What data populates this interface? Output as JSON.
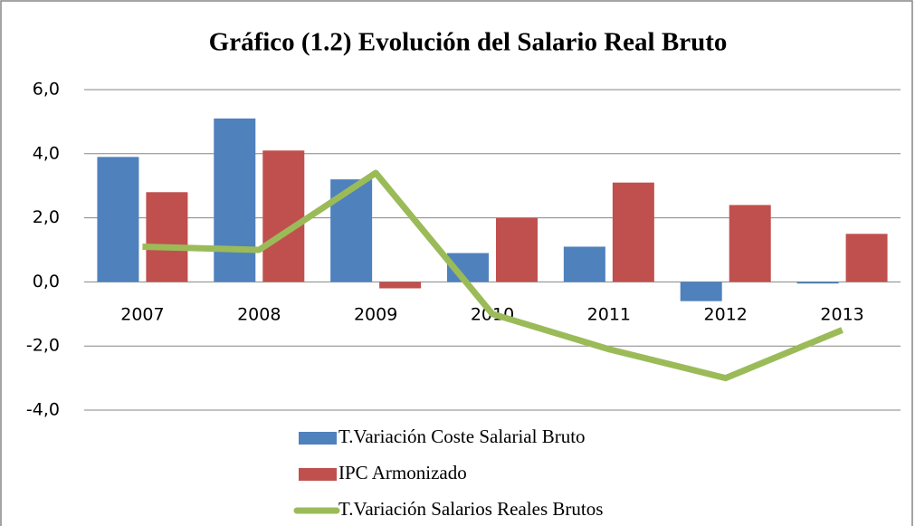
{
  "chart_data": {
    "type": "bar",
    "title": "Gráfico (1.2) Evolución del Salario Real Bruto",
    "categories": [
      "2007",
      "2008",
      "2009",
      "2010",
      "2011",
      "2012",
      "2013"
    ],
    "series": [
      {
        "name": "T.Variación Coste Salarial Bruto",
        "type": "bar",
        "color": "#4f81bd",
        "values": [
          3.9,
          5.1,
          3.2,
          0.9,
          1.1,
          -0.6,
          -0.05
        ]
      },
      {
        "name": "IPC Armonizado",
        "type": "bar",
        "color": "#c0504d",
        "values": [
          2.8,
          4.1,
          -0.2,
          2.0,
          3.1,
          2.4,
          1.5
        ]
      },
      {
        "name": "T.Variación Salarios Reales Brutos",
        "type": "line",
        "color": "#9bbb59",
        "values": [
          1.1,
          1.0,
          3.4,
          -1.0,
          -2.1,
          -3.0,
          -1.5
        ]
      }
    ],
    "ylim": [
      -4,
      6
    ],
    "yticks": [
      {
        "value": -4,
        "label": "-4,0"
      },
      {
        "value": -2,
        "label": "-2,0"
      },
      {
        "value": 0,
        "label": "0,0"
      },
      {
        "value": 2,
        "label": "2,0"
      },
      {
        "value": 4,
        "label": "4,0"
      },
      {
        "value": 6,
        "label": "6,0"
      }
    ],
    "grid": true
  }
}
